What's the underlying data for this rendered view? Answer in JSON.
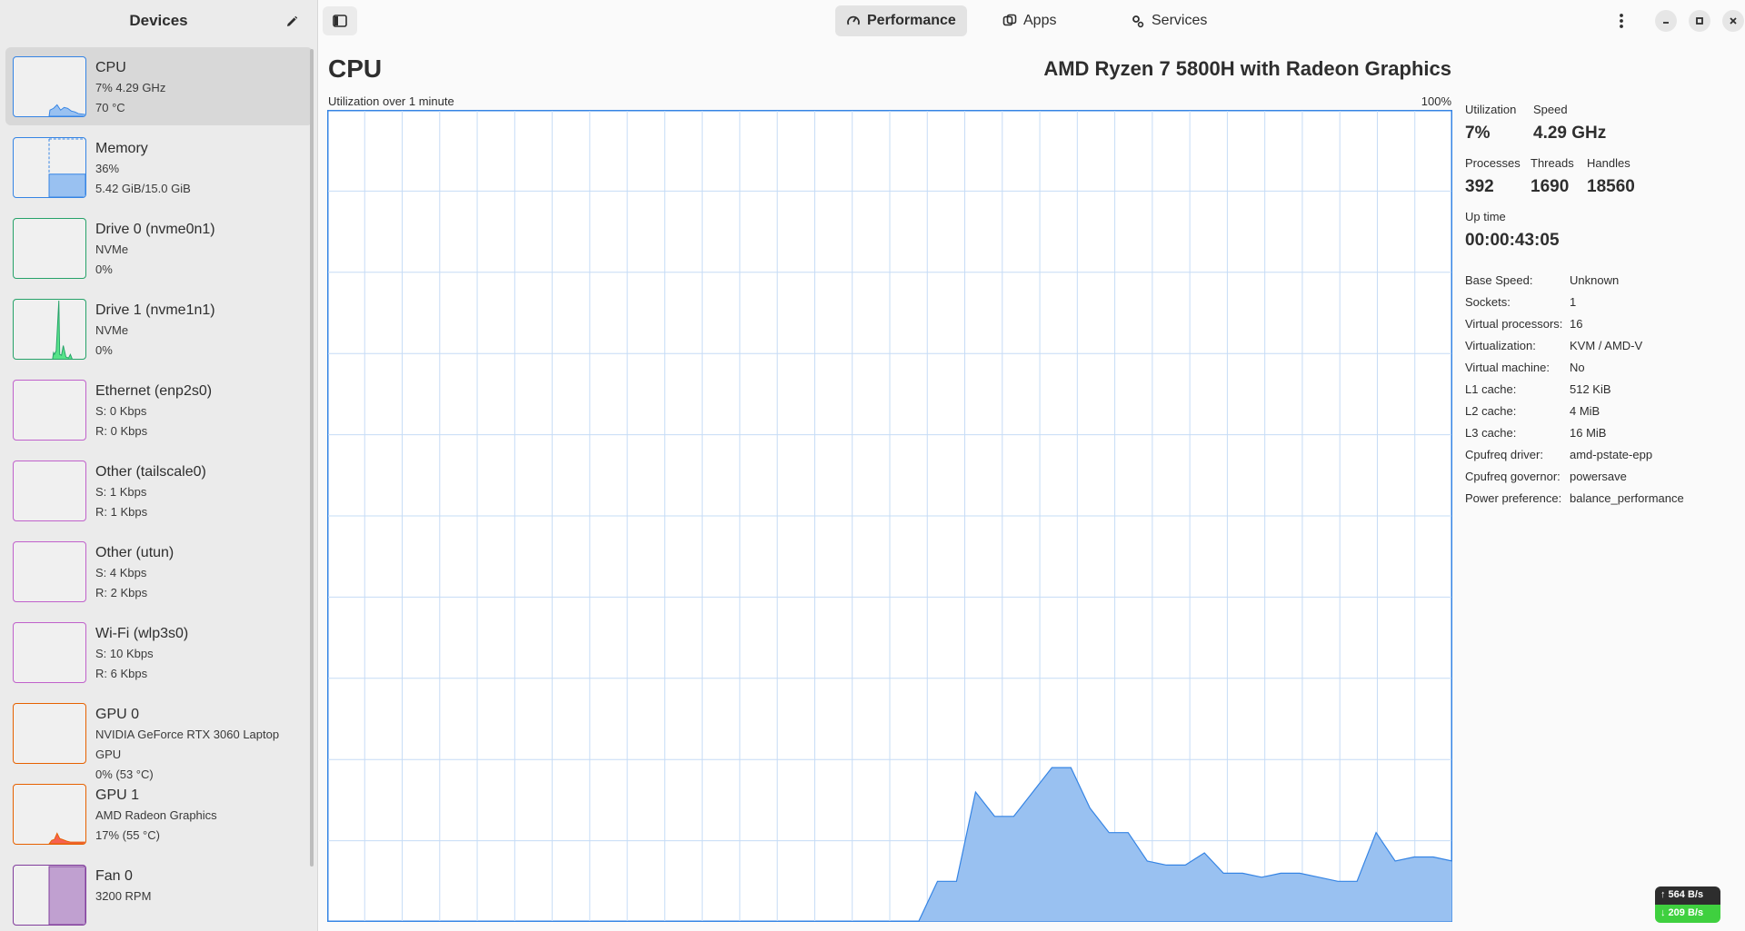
{
  "sidebar": {
    "title": "Devices",
    "devices": [
      {
        "name": "CPU",
        "line1": "7% 4.29 GHz",
        "line2": "70 °C",
        "color": "#3584e4",
        "selected": true
      },
      {
        "name": "Memory",
        "line1": "36%",
        "line2": "5.42 GiB/15.0 GiB",
        "color": "#3584e4"
      },
      {
        "name": "Drive 0 (nvme0n1)",
        "line1": "NVMe",
        "line2": "0%",
        "color": "#26a269"
      },
      {
        "name": "Drive 1 (nvme1n1)",
        "line1": "NVMe",
        "line2": "0%",
        "color": "#26a269"
      },
      {
        "name": "Ethernet (enp2s0)",
        "line1": "S: 0 Kbps",
        "line2": "R: 0 Kbps",
        "color": "#c061cb"
      },
      {
        "name": "Other (tailscale0)",
        "line1": "S: 1 Kbps",
        "line2": "R: 1 Kbps",
        "color": "#c061cb"
      },
      {
        "name": "Other (utun)",
        "line1": "S: 4 Kbps",
        "line2": "R: 2 Kbps",
        "color": "#c061cb"
      },
      {
        "name": "Wi-Fi (wlp3s0)",
        "line1": "S: 10 Kbps",
        "line2": "R: 6 Kbps",
        "color": "#c061cb"
      },
      {
        "name": "GPU 0",
        "line1": "NVIDIA GeForce RTX 3060 Laptop GPU",
        "line2": "0% (53 °C)",
        "color": "#e66100"
      },
      {
        "name": "GPU 1",
        "line1": "AMD Radeon Graphics",
        "line2": "17% (55 °C)",
        "color": "#e66100"
      },
      {
        "name": "Fan 0",
        "line1": "3200 RPM",
        "line2": "",
        "color": "#813d9c"
      }
    ]
  },
  "header": {
    "tabs": [
      {
        "label": "Performance",
        "icon": "gauge-icon",
        "active": true
      },
      {
        "label": "Apps",
        "icon": "apps-icon"
      },
      {
        "label": "Services",
        "icon": "services-icon"
      }
    ]
  },
  "main": {
    "title": "CPU",
    "model": "AMD Ryzen 7 5800H with Radeon Graphics",
    "graph_caption": "Utilization over 1 minute",
    "graph_max": "100%",
    "stats": {
      "utilization_label": "Utilization",
      "utilization": "7%",
      "speed_label": "Speed",
      "speed": "4.29 GHz",
      "processes_label": "Processes",
      "processes": "392",
      "threads_label": "Threads",
      "threads": "1690",
      "handles_label": "Handles",
      "handles": "18560",
      "uptime_label": "Up time",
      "uptime": "00:00:43:05"
    },
    "properties": [
      {
        "key": "Base Speed:",
        "value": "Unknown"
      },
      {
        "key": "Sockets:",
        "value": "1"
      },
      {
        "key": "Virtual processors:",
        "value": "16"
      },
      {
        "key": "Virtualization:",
        "value": "KVM / AMD-V"
      },
      {
        "key": "Virtual machine:",
        "value": "No"
      },
      {
        "key": "L1 cache:",
        "value": "512 KiB"
      },
      {
        "key": "L2 cache:",
        "value": "4 MiB"
      },
      {
        "key": "L3 cache:",
        "value": "16 MiB"
      },
      {
        "key": "Cpufreq driver:",
        "value": "amd-pstate-epp"
      },
      {
        "key": "Cpufreq governor:",
        "value": "powersave"
      },
      {
        "key": "Power preference:",
        "value": "balance_performance"
      }
    ]
  },
  "chart_data": {
    "type": "area",
    "ylim": [
      0,
      100
    ],
    "values": [
      0,
      0,
      0,
      0,
      0,
      0,
      0,
      0,
      0,
      0,
      0,
      0,
      0,
      0,
      0,
      0,
      0,
      0,
      0,
      0,
      0,
      0,
      0,
      0,
      0,
      0,
      0,
      0,
      0,
      0,
      0,
      0,
      5,
      5,
      16,
      13,
      13,
      16,
      19,
      19,
      14,
      11,
      11,
      7.5,
      7,
      7,
      8.5,
      6,
      6,
      5.5,
      6,
      6,
      5.5,
      5,
      5,
      11,
      7.5,
      8,
      8,
      7.5
    ]
  },
  "net_indicator": {
    "up": "↑ 564 B/s",
    "down": "↓ 209 B/s"
  },
  "colors": {
    "accent": "#3584e4",
    "graph_fill": "#99c1f1",
    "grid": "#c6dcf6"
  }
}
